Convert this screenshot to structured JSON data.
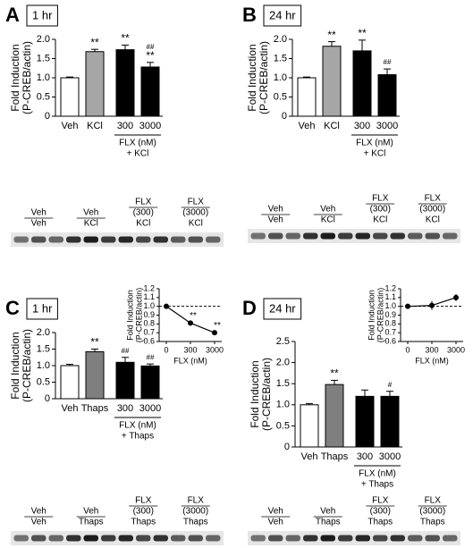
{
  "chart_data": [
    {
      "type": "bar",
      "panel": "A",
      "time_label": "1 hr",
      "ylabel": [
        "Fold Induction",
        "(P-CREB/actin)"
      ],
      "categories": [
        "Veh",
        "KCl",
        "300",
        "3000"
      ],
      "values": [
        1.0,
        1.68,
        1.73,
        1.28
      ],
      "errors": [
        0.02,
        0.06,
        0.12,
        0.12
      ],
      "colors": [
        "#ffffff",
        "#a6a6a6",
        "#000000",
        "#000000"
      ],
      "ylim": [
        0,
        2
      ],
      "yticks": [
        0,
        0.5,
        {
          "value": 1,
          "label": "1.0"
        },
        1.5,
        {
          "value": 2,
          "label": "2.0"
        }
      ],
      "annotations": [
        [],
        [
          "**"
        ],
        [
          "**"
        ],
        [
          "##",
          "**"
        ]
      ],
      "group_label": [
        "FLX (nM)",
        "+ KCl"
      ],
      "blot_labels": [
        [
          "Veh",
          "Veh"
        ],
        [
          "Veh",
          "KCl"
        ],
        [
          "FLX",
          "(300)",
          "KCl"
        ],
        [
          "FLX",
          "(3000)",
          "KCl"
        ]
      ]
    },
    {
      "type": "bar",
      "panel": "B",
      "time_label": "24 hr",
      "ylabel": [
        "Fold Induction",
        "(P-CREB/actin)"
      ],
      "categories": [
        "Veh",
        "KCl",
        "300",
        "3000"
      ],
      "values": [
        1.0,
        1.82,
        1.7,
        1.08
      ],
      "errors": [
        0.02,
        0.12,
        0.28,
        0.15
      ],
      "colors": [
        "#ffffff",
        "#a6a6a6",
        "#000000",
        "#000000"
      ],
      "ylim": [
        0,
        2
      ],
      "yticks": [
        0,
        0.5,
        {
          "value": 1,
          "label": "1.0"
        },
        1.5,
        {
          "value": 2,
          "label": "2.0"
        }
      ],
      "annotations": [
        [],
        [
          "**"
        ],
        [
          "**"
        ],
        [
          "##"
        ]
      ],
      "group_label": [
        "FLX (nM)",
        "+ KCl"
      ],
      "blot_labels": [
        [
          "Veh",
          "Veh"
        ],
        [
          "Veh",
          "KCl"
        ],
        [
          "FLX",
          "(300)",
          "KCl"
        ],
        [
          "FLX",
          "(3000)",
          "KCl"
        ]
      ]
    },
    {
      "type": "bar",
      "panel": "C",
      "time_label": "1 hr",
      "ylabel": [
        "Fold Induction",
        "(P-CREB/actin)"
      ],
      "categories": [
        "Veh",
        "Thaps",
        "300",
        "3000"
      ],
      "values": [
        1.0,
        1.42,
        1.1,
        0.99
      ],
      "errors": [
        0.04,
        0.08,
        0.15,
        0.06
      ],
      "colors": [
        "#ffffff",
        "#7f7f7f",
        "#000000",
        "#000000"
      ],
      "ylim": [
        0,
        2
      ],
      "yticks": [
        0,
        0.5,
        {
          "value": 1,
          "label": "1.0"
        },
        1.5,
        {
          "value": 2,
          "label": "2.0"
        }
      ],
      "annotations": [
        [],
        [
          "**"
        ],
        [
          "##"
        ],
        [
          "##"
        ]
      ],
      "group_label": [
        "FLX (nM)",
        "+ Thaps"
      ],
      "blot_labels": [
        [
          "Veh",
          "Veh"
        ],
        [
          "Veh",
          "Thaps"
        ],
        [
          "FLX",
          "(300)",
          "Thaps"
        ],
        [
          "FLX",
          "(3000)",
          "Thaps"
        ]
      ]
    },
    {
      "type": "line",
      "ylabel": [
        "Fold Induction",
        "(P-CREB/actin)"
      ],
      "xlabel": "FLX (nM)",
      "categories": [
        "0",
        "300",
        "3000"
      ],
      "values": [
        1.0,
        0.81,
        0.7
      ],
      "errors": [
        0.03,
        0.02,
        0.02
      ],
      "color": "#000000",
      "ylim": [
        0.6,
        1.2
      ],
      "yticks": [
        0.6,
        0.7,
        0.8,
        0.9,
        {
          "value": 1,
          "label": "1.0"
        },
        1.1,
        1.2
      ],
      "ref_line": 1,
      "annotations": [
        [],
        [
          "**"
        ],
        [
          "**"
        ]
      ]
    },
    {
      "type": "bar",
      "panel": "D",
      "time_label": "24 hr",
      "ylabel": [
        "Fold Induction",
        "(P-CREB/actin)"
      ],
      "categories": [
        "Veh",
        "Thaps",
        "300",
        "3000"
      ],
      "values": [
        1.0,
        1.48,
        1.2,
        1.2
      ],
      "errors": [
        0.03,
        0.1,
        0.15,
        0.12
      ],
      "colors": [
        "#ffffff",
        "#7f7f7f",
        "#000000",
        "#000000"
      ],
      "ylim": [
        0,
        2.5
      ],
      "yticks": [
        0,
        0.5,
        {
          "value": 1,
          "label": "1.0"
        },
        1.5,
        {
          "value": 2,
          "label": "2.0"
        },
        2.5
      ],
      "annotations": [
        [],
        [
          "**"
        ],
        [],
        [
          "#"
        ]
      ],
      "group_label": [
        "FLX (nM)",
        "+ Thaps"
      ],
      "blot_labels": [
        [
          "Veh",
          "Veh"
        ],
        [
          "Veh",
          "Thaps"
        ],
        [
          "FLX",
          "(300)",
          "Thaps"
        ],
        [
          "FLX",
          "(3000)",
          "Thaps"
        ]
      ]
    },
    {
      "type": "line",
      "ylabel": [
        "Fold Induction",
        "(P-CREB/actin)"
      ],
      "xlabel": "FLX (nM)",
      "categories": [
        "0",
        "300",
        "3000"
      ],
      "values": [
        1.0,
        1.01,
        1.1
      ],
      "errors": [
        0.03,
        0.05,
        0.04
      ],
      "color": "#000000",
      "ylim": [
        0.6,
        1.2
      ],
      "yticks": [
        0.6,
        0.7,
        0.8,
        0.9,
        {
          "value": 1,
          "label": "1.0"
        },
        1.1,
        1.2
      ],
      "ref_line": 1
    }
  ]
}
